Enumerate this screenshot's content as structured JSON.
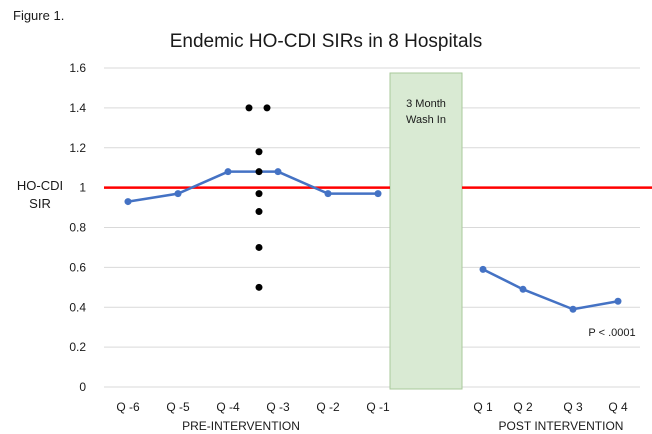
{
  "figure_label": "Figure 1.",
  "chart_data": {
    "type": "line",
    "title": "Endemic HO-CDI SIRs in 8 Hospitals",
    "ylabel": "HO-CDI\nSIR",
    "ylim": [
      0,
      1.6
    ],
    "yticks": [
      0,
      0.2,
      0.4,
      0.6,
      0.8,
      1,
      1.2,
      1.4,
      1.6
    ],
    "ytick_labels": [
      "0",
      "0.2",
      "0.4",
      "0.6",
      "0.8",
      "1",
      "1.2",
      "1.4",
      "1.6"
    ],
    "grid": true,
    "reference_line": {
      "y": 1,
      "color": "#ff0000"
    },
    "pre_intervention": {
      "label": "PRE-INTERVENTION",
      "categories": [
        "Q -6",
        "Q -5",
        "Q -4",
        "Q -3",
        "Q -2",
        "Q -1"
      ],
      "values": [
        0.93,
        0.97,
        1.08,
        1.08,
        0.97,
        0.97
      ]
    },
    "washin": {
      "label": "3 Month Wash In",
      "color": "#d9ead3"
    },
    "post_intervention": {
      "label": "POST INTERVENTION",
      "categories": [
        "Q 1",
        "Q 2",
        "Q 3",
        "Q 4"
      ],
      "values": [
        0.59,
        0.49,
        0.39,
        0.43
      ]
    },
    "hospital_points": {
      "values": [
        1.4,
        1.4,
        1.18,
        1.08,
        0.97,
        0.88,
        0.7,
        0.5
      ]
    },
    "annotation": "P < .0001",
    "line_color": "#4472c4"
  }
}
